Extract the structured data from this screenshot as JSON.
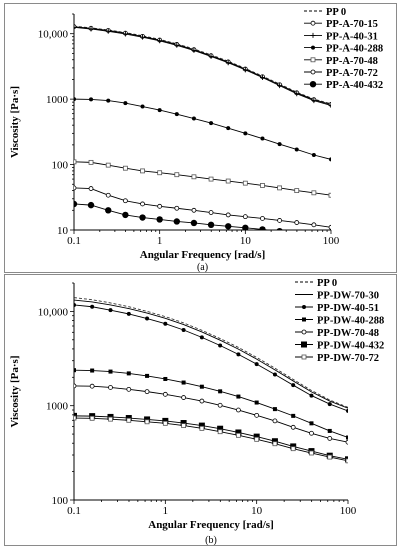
{
  "chart_data": [
    {
      "type": "line",
      "panel_label": "(a)",
      "xlabel": "Angular Frequency [rad/s]",
      "ylabel": "Viscosity [Pa·s]",
      "xscale": "log",
      "yscale": "log",
      "xlim": [
        0.1,
        100
      ],
      "ylim": [
        10,
        20000
      ],
      "xticks": [
        "0.1",
        "1",
        "10",
        "100"
      ],
      "yticks": [
        "10",
        "100",
        "1000",
        "10,000"
      ],
      "x": [
        0.1,
        0.158,
        0.251,
        0.398,
        0.631,
        1,
        1.585,
        2.512,
        3.981,
        6.31,
        10,
        15.85,
        25.12,
        39.81,
        63.1,
        100
      ],
      "legend_position": "top-right",
      "grid": false,
      "series": [
        {
          "name": "PP 0",
          "style": "dashed",
          "marker": "none",
          "values": [
            13000,
            12300,
            11400,
            10400,
            9300,
            8200,
            7000,
            5850,
            4750,
            3800,
            2950,
            2250,
            1700,
            1280,
            1000,
            850
          ]
        },
        {
          "name": "PP-A-70-15",
          "style": "solid",
          "marker": "open-circle",
          "values": [
            12800,
            12100,
            11200,
            10200,
            9100,
            8000,
            6850,
            5700,
            4620,
            3700,
            2880,
            2200,
            1660,
            1250,
            980,
            830
          ]
        },
        {
          "name": "PP-A-40-31",
          "style": "solid",
          "marker": "plus",
          "values": [
            12500,
            11800,
            10900,
            9900,
            8850,
            7800,
            6650,
            5550,
            4500,
            3600,
            2800,
            2140,
            1610,
            1210,
            950,
            800
          ]
        },
        {
          "name": "PP-A-40-288",
          "style": "solid",
          "marker": "filled-circle",
          "values": [
            1000,
            990,
            950,
            870,
            770,
            680,
            590,
            505,
            430,
            360,
            300,
            250,
            205,
            170,
            140,
            120
          ]
        },
        {
          "name": "PP-A-70-48",
          "style": "solid",
          "marker": "open-square",
          "values": [
            110,
            108,
            98,
            88,
            80,
            75,
            70,
            65,
            60,
            56,
            52,
            48,
            44,
            40,
            37,
            34
          ]
        },
        {
          "name": "PP-A-70-72",
          "style": "solid",
          "marker": "open-circle",
          "values": [
            44,
            43,
            34,
            28,
            25,
            23,
            21.5,
            20,
            18.5,
            17,
            16,
            15,
            14,
            13,
            12,
            11
          ]
        },
        {
          "name": "PP-A-40-432",
          "style": "solid",
          "marker": "filled-circle-large",
          "values": [
            25,
            24,
            20,
            17,
            15.5,
            14.5,
            13.5,
            12.8,
            12,
            11.4,
            10.8,
            10.2,
            9.6,
            9.1,
            8.6,
            8.1
          ]
        }
      ]
    },
    {
      "type": "line",
      "panel_label": "(b)",
      "xlabel": "Angular Frequency [rad/s]",
      "ylabel": "Viscosity [Pa·s]",
      "xscale": "log",
      "yscale": "log",
      "xlim": [
        0.1,
        100
      ],
      "ylim": [
        100,
        20000
      ],
      "xticks": [
        "0.1",
        "1",
        "10",
        "100"
      ],
      "yticks": [
        "100",
        "1000",
        "10,000"
      ],
      "x": [
        0.1,
        0.158,
        0.251,
        0.398,
        0.631,
        1,
        1.585,
        2.512,
        3.981,
        6.31,
        10,
        15.85,
        25.12,
        39.81,
        63.1,
        100
      ],
      "legend_position": "top-right",
      "grid": false,
      "series": [
        {
          "name": "PP 0",
          "style": "dashed",
          "marker": "none",
          "values": [
            14000,
            13300,
            12300,
            11200,
            10000,
            8800,
            7550,
            6300,
            5150,
            4150,
            3250,
            2500,
            1900,
            1450,
            1150,
            960
          ]
        },
        {
          "name": "PP-DW-70-30",
          "style": "solid",
          "marker": "none",
          "values": [
            13200,
            12600,
            11700,
            10700,
            9600,
            8450,
            7250,
            6050,
            4950,
            3980,
            3120,
            2400,
            1830,
            1400,
            1120,
            940
          ]
        },
        {
          "name": "PP-DW-40-51",
          "style": "solid",
          "marker": "filled-circle",
          "values": [
            11700,
            11200,
            10300,
            9400,
            8400,
            7400,
            6350,
            5300,
            4350,
            3500,
            2760,
            2140,
            1650,
            1280,
            1040,
            880
          ]
        },
        {
          "name": "PP-DW-40-288",
          "style": "solid",
          "marker": "filled-square",
          "values": [
            2380,
            2360,
            2300,
            2200,
            2070,
            1920,
            1760,
            1590,
            1420,
            1250,
            1080,
            920,
            780,
            650,
            540,
            460
          ]
        },
        {
          "name": "PP-DW-70-48",
          "style": "solid",
          "marker": "open-circle",
          "values": [
            1620,
            1610,
            1560,
            1490,
            1410,
            1320,
            1220,
            1120,
            1010,
            900,
            790,
            690,
            590,
            510,
            450,
            410
          ]
        },
        {
          "name": "PP-DW-40-432",
          "style": "solid",
          "marker": "filled-square-large",
          "values": [
            780,
            775,
            760,
            740,
            715,
            690,
            655,
            615,
            570,
            520,
            470,
            420,
            370,
            330,
            295,
            270
          ]
        },
        {
          "name": "PP-DW-70-72",
          "style": "solid",
          "marker": "open-square",
          "values": [
            740,
            735,
            720,
            700,
            675,
            650,
            615,
            575,
            530,
            485,
            440,
            395,
            350,
            315,
            285,
            260
          ]
        }
      ]
    }
  ]
}
